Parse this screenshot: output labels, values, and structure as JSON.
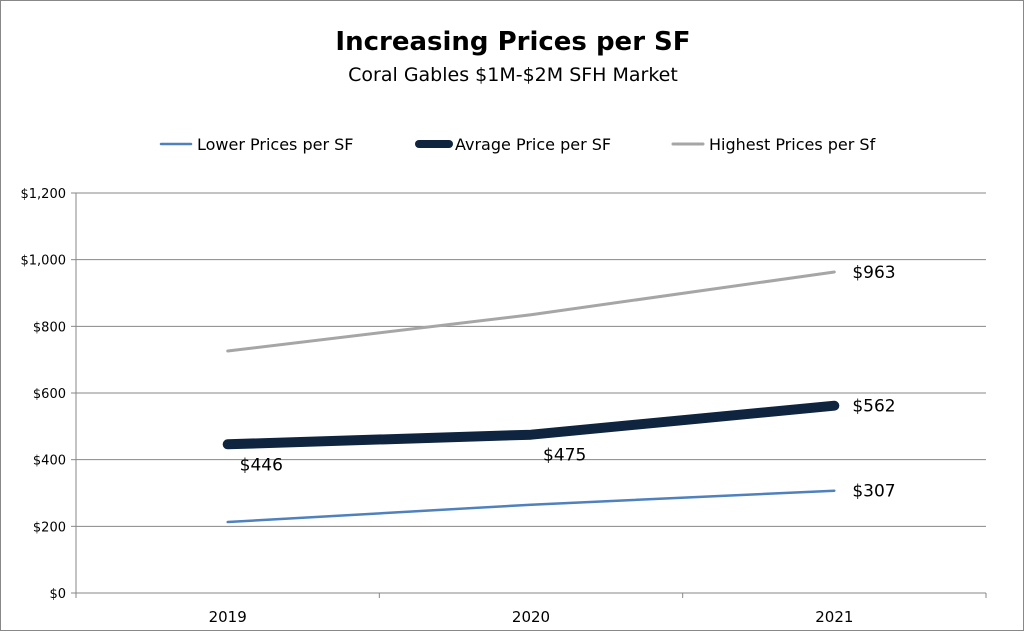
{
  "chart_data": {
    "type": "line",
    "title": "Increasing Prices per SF",
    "subtitle": "Coral Gables $1M-$2M SFH Market",
    "categories": [
      "2019",
      "2020",
      "2021"
    ],
    "ylim": [
      0,
      1200
    ],
    "yticks": [
      0,
      200,
      400,
      600,
      800,
      1000,
      1200
    ],
    "ytick_labels": [
      "$0",
      "$200",
      "$400",
      "$600",
      "$800",
      "$1,000",
      "$1,200"
    ],
    "grid": true,
    "legend_position": "top",
    "series": [
      {
        "name": "Lower Prices per SF",
        "values": [
          213,
          265,
          307
        ],
        "color": "#4F81BD",
        "data_labels": [
          null,
          null,
          "$307"
        ]
      },
      {
        "name": "Avrage Price per SF",
        "values": [
          446,
          475,
          562
        ],
        "color": "#0F243E",
        "data_labels": [
          "$446",
          "$475",
          "$562"
        ]
      },
      {
        "name": "Highest Prices per Sf",
        "values": [
          726,
          835,
          963
        ],
        "color": "#A6A6A6",
        "data_labels": [
          null,
          null,
          "$963"
        ]
      }
    ]
  }
}
